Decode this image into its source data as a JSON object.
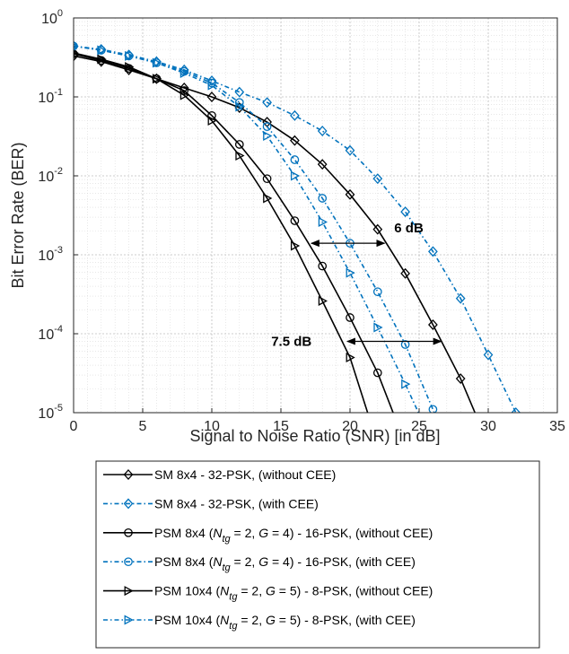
{
  "chart_data": {
    "type": "line",
    "xlabel": "Signal to Noise Ratio (SNR) [in dB]",
    "ylabel": "Bit Error Rate (BER)",
    "xlim": [
      0,
      35
    ],
    "ylim": [
      1e-05,
      1
    ],
    "yscale": "log",
    "grid": true,
    "minor_grid": true,
    "x_ticks": [
      "0",
      "5",
      "10",
      "15",
      "20",
      "25",
      "30",
      "35"
    ],
    "y_ticks": [
      {
        "base": "10",
        "exp": "0",
        "value": 1
      },
      {
        "base": "10",
        "exp": "-1",
        "value": 0.1
      },
      {
        "base": "10",
        "exp": "-2",
        "value": 0.01
      },
      {
        "base": "10",
        "exp": "-3",
        "value": 0.001
      },
      {
        "base": "10",
        "exp": "-4",
        "value": 0.0001
      },
      {
        "base": "10",
        "exp": "-5",
        "value": 1e-05
      }
    ],
    "legend_placement": "below",
    "series": [
      {
        "legend": [
          {
            "t": "SM 8x4 - 32-PSK, (without CEE)"
          }
        ],
        "color": "#000000",
        "dash": false,
        "marker": "diamond",
        "x": [
          0,
          2,
          4,
          6,
          8,
          10,
          12,
          14,
          16,
          18,
          20,
          22,
          24,
          26,
          28,
          30
        ],
        "y": [
          0.33,
          0.28,
          0.22,
          0.17,
          0.13,
          0.1,
          0.073,
          0.048,
          0.028,
          0.014,
          0.0058,
          0.0021,
          0.00058,
          0.00013,
          2.7e-05,
          4e-06
        ]
      },
      {
        "legend": [
          {
            "t": "SM 8x4 - 32-PSK, (with CEE)"
          }
        ],
        "color": "#0072BD",
        "dash": true,
        "marker": "diamond",
        "x": [
          0,
          2,
          4,
          6,
          8,
          10,
          12,
          14,
          16,
          18,
          20,
          22,
          24,
          26,
          28,
          30,
          32,
          33
        ],
        "y": [
          0.44,
          0.4,
          0.34,
          0.28,
          0.22,
          0.16,
          0.115,
          0.085,
          0.058,
          0.037,
          0.021,
          0.0092,
          0.0035,
          0.0011,
          0.00028,
          5.4e-05,
          1e-05,
          4e-06
        ]
      },
      {
        "legend": [
          {
            "t": "PSM 8x4 ("
          },
          {
            "t": "N",
            "it": true
          },
          {
            "t": "tg",
            "it": true,
            "sub": true
          },
          {
            "t": " = 2, "
          },
          {
            "t": "G",
            "it": true
          },
          {
            "t": " = 4) - 16-PSK, (without CEE)"
          }
        ],
        "color": "#000000",
        "dash": false,
        "marker": "circle",
        "x": [
          0,
          2,
          4,
          6,
          8,
          10,
          12,
          14,
          16,
          18,
          20,
          22,
          24
        ],
        "y": [
          0.35,
          0.29,
          0.23,
          0.17,
          0.12,
          0.058,
          0.025,
          0.0092,
          0.0027,
          0.00072,
          0.00016,
          3.2e-05,
          4e-06
        ]
      },
      {
        "legend": [
          {
            "t": "PSM 8x4 ("
          },
          {
            "t": "N",
            "it": true
          },
          {
            "t": "tg",
            "it": true,
            "sub": true
          },
          {
            "t": " = 2, "
          },
          {
            "t": "G",
            "it": true
          },
          {
            "t": " = 4) - 16-PSK, (with CEE)"
          }
        ],
        "color": "#0072BD",
        "dash": true,
        "marker": "circle",
        "x": [
          0,
          2,
          4,
          6,
          8,
          10,
          12,
          14,
          16,
          18,
          20,
          22,
          24,
          26,
          27
        ],
        "y": [
          0.44,
          0.39,
          0.33,
          0.27,
          0.21,
          0.15,
          0.085,
          0.042,
          0.016,
          0.0052,
          0.0014,
          0.00034,
          7.3e-05,
          1.1e-05,
          4e-06
        ]
      },
      {
        "legend": [
          {
            "t": "PSM 10x4 ("
          },
          {
            "t": "N",
            "it": true
          },
          {
            "t": "tg",
            "it": true,
            "sub": true
          },
          {
            "t": " = 2, "
          },
          {
            "t": "G",
            "it": true
          },
          {
            "t": " = 5) - 8-PSK, (without CEE)"
          }
        ],
        "color": "#000000",
        "dash": false,
        "marker": "triangle-right",
        "x": [
          0,
          2,
          4,
          6,
          8,
          10,
          12,
          14,
          16,
          18,
          20,
          22
        ],
        "y": [
          0.36,
          0.3,
          0.24,
          0.17,
          0.105,
          0.05,
          0.018,
          0.0052,
          0.0013,
          0.00026,
          5e-05,
          4e-06
        ]
      },
      {
        "legend": [
          {
            "t": "PSM 10x4 ("
          },
          {
            "t": "N",
            "it": true
          },
          {
            "t": "tg",
            "it": true,
            "sub": true
          },
          {
            "t": " = 2, "
          },
          {
            "t": "G",
            "it": true
          },
          {
            "t": " = 5) - 8-PSK, (with CEE)"
          }
        ],
        "color": "#0072BD",
        "dash": true,
        "marker": "triangle-right",
        "x": [
          0,
          2,
          4,
          6,
          8,
          10,
          12,
          14,
          16,
          18,
          20,
          22,
          24,
          26
        ],
        "y": [
          0.44,
          0.39,
          0.33,
          0.27,
          0.2,
          0.14,
          0.075,
          0.032,
          0.01,
          0.0026,
          0.00059,
          0.00012,
          2.3e-05,
          4e-06
        ]
      }
    ],
    "annotations": [
      {
        "text": "6 dB",
        "arrow_x": [
          17.2,
          22.5
        ],
        "arrow_y": 0.0014,
        "label_x": 23.2,
        "label_y": 0.0022
      },
      {
        "text": "7.5 dB",
        "arrow_x": [
          19.8,
          26.6
        ],
        "arrow_y": 8e-05,
        "label_x": 14.3,
        "label_y": 8e-05
      }
    ]
  }
}
